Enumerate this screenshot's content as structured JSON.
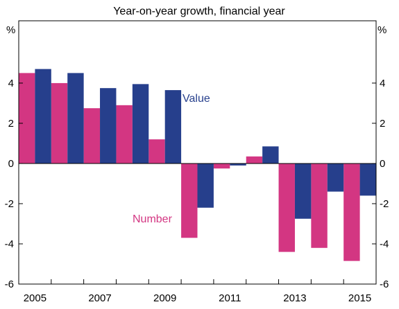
{
  "chart_data": {
    "type": "bar",
    "title": "Year-on-year growth, financial year",
    "y_unit_left": "%",
    "y_unit_right": "%",
    "ylim": [
      -6,
      6
    ],
    "yticks": [
      -6,
      -4,
      -2,
      0,
      2,
      4
    ],
    "ytick_labels": [
      "-6",
      "-4",
      "-2",
      "0",
      "2",
      "4"
    ],
    "categories": [
      "2005",
      "2006",
      "2007",
      "2008",
      "2009",
      "2010",
      "2011",
      "2012",
      "2013",
      "2014",
      "2015"
    ],
    "xtick_labels": [
      "2005",
      "2007",
      "2009",
      "2011",
      "2013",
      "2015"
    ],
    "grid": false,
    "series": [
      {
        "name": "Number",
        "color": "#d33682",
        "values": [
          4.5,
          4.0,
          2.75,
          2.9,
          1.2,
          -3.7,
          -0.25,
          0.35,
          -4.4,
          -4.2,
          -4.85
        ]
      },
      {
        "name": "Value",
        "color": "#263f8c",
        "values": [
          4.7,
          4.5,
          3.75,
          3.95,
          3.65,
          -2.2,
          -0.1,
          0.85,
          -2.75,
          -1.4,
          -1.6
        ]
      }
    ]
  }
}
